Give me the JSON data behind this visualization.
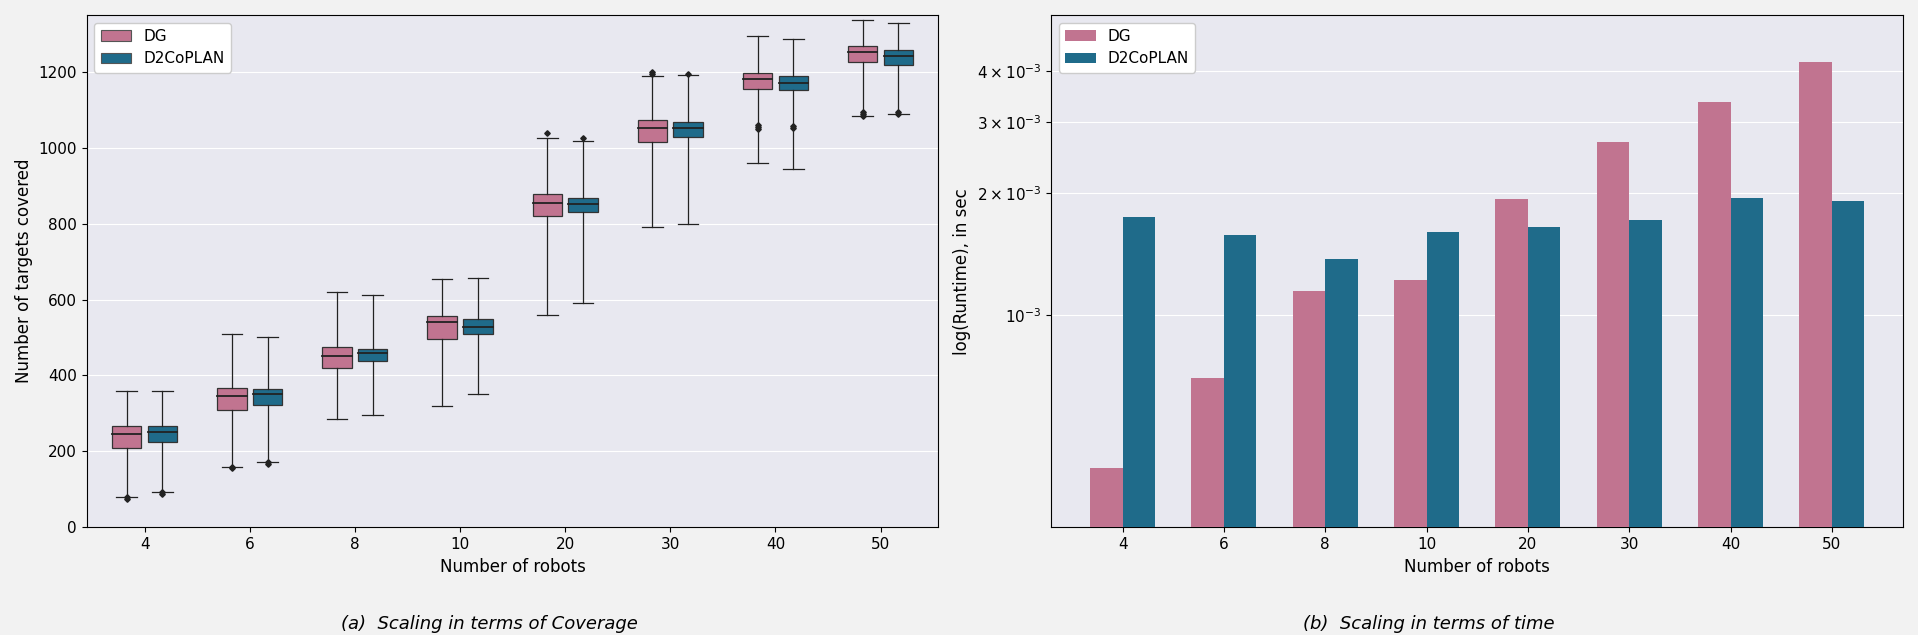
{
  "fig_facecolor": "#f2f2f2",
  "bg_color": "#e8e8f0",
  "dg_color": "#c17490",
  "d2coplan_color": "#1f6b8a",
  "boxplot": {
    "robots": [
      4,
      6,
      8,
      10,
      20,
      30,
      40,
      50
    ],
    "dg": {
      "whislo": [
        80,
        160,
        285,
        320,
        560,
        790,
        960,
        1085
      ],
      "q1": [
        210,
        310,
        420,
        495,
        820,
        1015,
        1155,
        1225
      ],
      "med": [
        245,
        345,
        452,
        540,
        855,
        1052,
        1182,
        1252
      ],
      "q3": [
        268,
        368,
        475,
        558,
        878,
        1072,
        1198,
        1268
      ],
      "whishi": [
        360,
        510,
        620,
        655,
        1025,
        1190,
        1295,
        1338
      ],
      "fliers_low": [
        [
          80,
          75
        ],
        [
          160,
          155
        ],
        [],
        [],
        [],
        [],
        [],
        []
      ],
      "fliers_high": [
        [],
        [],
        [],
        [],
        [
          1040
        ],
        [
          1195,
          1200
        ],
        [
          1050,
          1055,
          1060
        ],
        [
          1085,
          1090,
          1095
        ]
      ]
    },
    "d2coplan": {
      "whislo": [
        92,
        172,
        295,
        350,
        590,
        800,
        945,
        1090
      ],
      "q1": [
        225,
        322,
        438,
        510,
        832,
        1028,
        1152,
        1218
      ],
      "med": [
        250,
        350,
        458,
        528,
        852,
        1052,
        1172,
        1242
      ],
      "q3": [
        268,
        365,
        470,
        548,
        868,
        1068,
        1188,
        1258
      ],
      "whishi": [
        358,
        502,
        612,
        658,
        1018,
        1192,
        1288,
        1328
      ],
      "fliers_low": [
        [
          92,
          88
        ],
        [
          172,
          168
        ],
        [],
        [],
        [],
        [],
        [],
        []
      ],
      "fliers_high": [
        [],
        [],
        [],
        [],
        [
          1025
        ],
        [
          1195
        ],
        [
          1052,
          1058
        ],
        [
          1090,
          1095
        ]
      ]
    },
    "ylabel": "Number of targets covered",
    "xlabel": "Number of robots",
    "ylim": [
      0,
      1350
    ],
    "yticks": [
      0,
      200,
      400,
      600,
      800,
      1000,
      1200
    ],
    "box_width": 0.28,
    "title": "(a)  Scaling in terms of Coverage"
  },
  "barplot": {
    "robots": [
      4,
      6,
      8,
      10,
      20,
      30,
      40,
      50
    ],
    "dg": [
      0.00042,
      0.0007,
      0.00115,
      0.00122,
      0.00193,
      0.00268,
      0.00335,
      0.00422
    ],
    "d2coplan": [
      0.00175,
      0.00158,
      0.00138,
      0.0016,
      0.00165,
      0.00172,
      0.00195,
      0.00191
    ],
    "ylabel": "log(Runtime), in sec",
    "xlabel": "Number of robots",
    "ylim_low": 0.0003,
    "ylim_high": 0.0055,
    "bar_width": 0.32,
    "title": "(b)  Scaling in terms of time"
  }
}
